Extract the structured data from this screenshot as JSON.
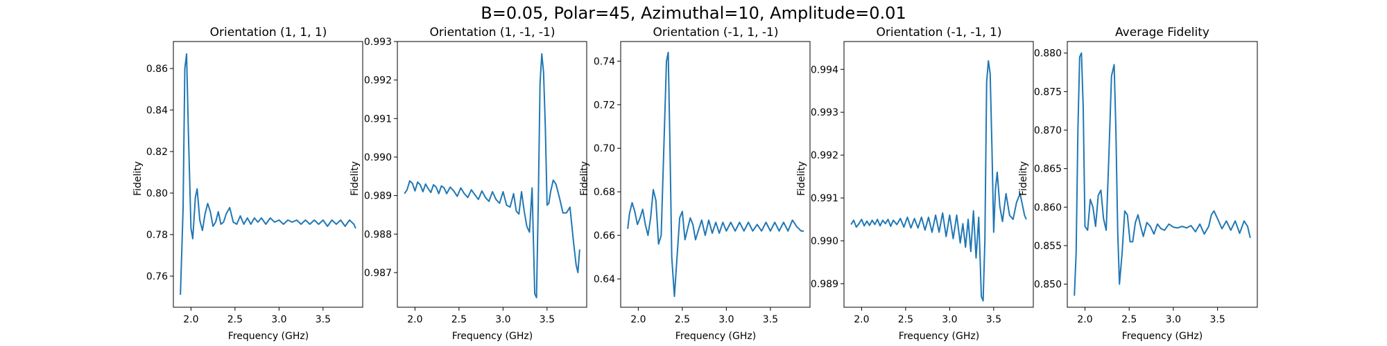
{
  "figure": {
    "suptitle": "B=0.05, Polar=45, Azimuthal=10, Amplitude=0.01",
    "line_color": "#1f77b4"
  },
  "chart_data": [
    {
      "type": "line",
      "title": "Orientation (1, 1, 1)",
      "xlabel": "Frequency (GHz)",
      "ylabel": "Fidelity",
      "xlim": [
        1.8,
        3.95
      ],
      "ylim": [
        0.745,
        0.873
      ],
      "xticks": [
        "2.0",
        "2.5",
        "3.0",
        "3.5"
      ],
      "yticks": [
        "0.76",
        "0.78",
        "0.80",
        "0.82",
        "0.84",
        "0.86"
      ],
      "series": [
        {
          "x": [
            1.88,
            1.91,
            1.93,
            1.95,
            1.97,
            2.0,
            2.02,
            2.05,
            2.07,
            2.1,
            2.13,
            2.16,
            2.19,
            2.22,
            2.25,
            2.28,
            2.31,
            2.34,
            2.37,
            2.4,
            2.44,
            2.48,
            2.52,
            2.56,
            2.6,
            2.64,
            2.68,
            2.72,
            2.76,
            2.8,
            2.85,
            2.9,
            2.95,
            3.0,
            3.05,
            3.1,
            3.15,
            3.2,
            3.25,
            3.3,
            3.35,
            3.4,
            3.45,
            3.5,
            3.55,
            3.6,
            3.65,
            3.7,
            3.75,
            3.8,
            3.85,
            3.87
          ],
          "y": [
            0.751,
            0.792,
            0.86,
            0.867,
            0.83,
            0.783,
            0.778,
            0.798,
            0.802,
            0.787,
            0.782,
            0.79,
            0.795,
            0.791,
            0.784,
            0.786,
            0.791,
            0.785,
            0.786,
            0.79,
            0.793,
            0.786,
            0.785,
            0.789,
            0.785,
            0.788,
            0.785,
            0.788,
            0.786,
            0.788,
            0.785,
            0.788,
            0.786,
            0.787,
            0.785,
            0.787,
            0.786,
            0.787,
            0.785,
            0.787,
            0.785,
            0.787,
            0.785,
            0.787,
            0.784,
            0.787,
            0.785,
            0.787,
            0.784,
            0.787,
            0.785,
            0.783
          ]
        }
      ]
    },
    {
      "type": "line",
      "title": "Orientation (1, -1, -1)",
      "xlabel": "Frequency (GHz)",
      "ylabel": "Fidelity",
      "xlim": [
        1.8,
        3.95
      ],
      "ylim": [
        0.9861,
        0.993
      ],
      "xticks": [
        "2.0",
        "2.5",
        "3.0",
        "3.5"
      ],
      "yticks": [
        "0.987",
        "0.988",
        "0.989",
        "0.990",
        "0.991",
        "0.992",
        "0.993"
      ],
      "series": [
        {
          "x": [
            1.88,
            1.91,
            1.94,
            1.97,
            2.0,
            2.03,
            2.06,
            2.09,
            2.12,
            2.15,
            2.18,
            2.21,
            2.24,
            2.27,
            2.3,
            2.33,
            2.36,
            2.4,
            2.44,
            2.48,
            2.52,
            2.56,
            2.6,
            2.64,
            2.68,
            2.72,
            2.76,
            2.8,
            2.84,
            2.88,
            2.92,
            2.96,
            3.0,
            3.04,
            3.08,
            3.12,
            3.15,
            3.18,
            3.21,
            3.24,
            3.27,
            3.3,
            3.33,
            3.36,
            3.38,
            3.4,
            3.42,
            3.44,
            3.46,
            3.48,
            3.5,
            3.52,
            3.54,
            3.57,
            3.6,
            3.64,
            3.68,
            3.72,
            3.76,
            3.8,
            3.83,
            3.85,
            3.87
          ],
          "y": [
            0.98905,
            0.98915,
            0.98938,
            0.98932,
            0.98912,
            0.98935,
            0.98928,
            0.9891,
            0.9893,
            0.98918,
            0.98908,
            0.98928,
            0.98922,
            0.98905,
            0.98925,
            0.9892,
            0.98905,
            0.98922,
            0.98912,
            0.98898,
            0.9892,
            0.98905,
            0.98895,
            0.98915,
            0.98902,
            0.9889,
            0.98912,
            0.98895,
            0.98885,
            0.9891,
            0.9889,
            0.9888,
            0.9891,
            0.98875,
            0.9887,
            0.98905,
            0.9886,
            0.98852,
            0.9891,
            0.9886,
            0.9882,
            0.98805,
            0.9892,
            0.98645,
            0.98635,
            0.9888,
            0.9919,
            0.99268,
            0.9922,
            0.9908,
            0.98875,
            0.9888,
            0.9891,
            0.9894,
            0.9893,
            0.98895,
            0.98855,
            0.98855,
            0.9887,
            0.9878,
            0.9872,
            0.987,
            0.9876
          ]
        }
      ]
    },
    {
      "type": "line",
      "title": "Orientation (-1, 1, -1)",
      "xlabel": "Frequency (GHz)",
      "ylabel": "Fidelity",
      "xlim": [
        1.8,
        3.95
      ],
      "ylim": [
        0.627,
        0.749
      ],
      "xticks": [
        "2.0",
        "2.5",
        "3.0",
        "3.5"
      ],
      "yticks": [
        "0.64",
        "0.66",
        "0.68",
        "0.70",
        "0.72",
        "0.74"
      ],
      "series": [
        {
          "x": [
            1.88,
            1.9,
            1.93,
            1.96,
            1.99,
            2.02,
            2.05,
            2.08,
            2.11,
            2.14,
            2.17,
            2.2,
            2.23,
            2.26,
            2.29,
            2.32,
            2.34,
            2.36,
            2.38,
            2.41,
            2.44,
            2.47,
            2.5,
            2.53,
            2.56,
            2.59,
            2.62,
            2.65,
            2.68,
            2.72,
            2.76,
            2.8,
            2.84,
            2.88,
            2.92,
            2.96,
            3.0,
            3.05,
            3.1,
            3.15,
            3.2,
            3.25,
            3.3,
            3.35,
            3.4,
            3.45,
            3.5,
            3.55,
            3.6,
            3.65,
            3.7,
            3.75,
            3.8,
            3.85,
            3.88
          ],
          "y": [
            0.663,
            0.67,
            0.675,
            0.671,
            0.665,
            0.668,
            0.672,
            0.665,
            0.66,
            0.668,
            0.681,
            0.676,
            0.656,
            0.66,
            0.7,
            0.74,
            0.744,
            0.7,
            0.65,
            0.632,
            0.65,
            0.668,
            0.671,
            0.658,
            0.663,
            0.668,
            0.665,
            0.658,
            0.662,
            0.667,
            0.66,
            0.667,
            0.661,
            0.666,
            0.661,
            0.666,
            0.662,
            0.666,
            0.662,
            0.666,
            0.662,
            0.666,
            0.662,
            0.665,
            0.662,
            0.666,
            0.662,
            0.666,
            0.662,
            0.666,
            0.662,
            0.667,
            0.664,
            0.662,
            0.662
          ]
        }
      ]
    },
    {
      "type": "line",
      "title": "Orientation (-1, -1, 1)",
      "xlabel": "Frequency (GHz)",
      "ylabel": "Fidelity",
      "xlim": [
        1.8,
        3.95
      ],
      "ylim": [
        0.98845,
        0.99465
      ],
      "xticks": [
        "2.0",
        "2.5",
        "3.0",
        "3.5"
      ],
      "yticks": [
        "0.989",
        "0.990",
        "0.991",
        "0.992",
        "0.993",
        "0.994"
      ],
      "series": [
        {
          "x": [
            1.88,
            1.91,
            1.94,
            1.97,
            2.0,
            2.03,
            2.06,
            2.09,
            2.12,
            2.15,
            2.18,
            2.21,
            2.24,
            2.27,
            2.3,
            2.33,
            2.36,
            2.4,
            2.44,
            2.48,
            2.52,
            2.56,
            2.6,
            2.64,
            2.68,
            2.72,
            2.76,
            2.8,
            2.84,
            2.88,
            2.92,
            2.96,
            3.0,
            3.04,
            3.08,
            3.12,
            3.15,
            3.18,
            3.21,
            3.24,
            3.27,
            3.3,
            3.33,
            3.36,
            3.38,
            3.4,
            3.42,
            3.44,
            3.46,
            3.48,
            3.5,
            3.52,
            3.54,
            3.57,
            3.6,
            3.64,
            3.68,
            3.72,
            3.76,
            3.8,
            3.83,
            3.85,
            3.87
          ],
          "y": [
            0.99038,
            0.99048,
            0.99032,
            0.9904,
            0.9905,
            0.99035,
            0.99046,
            0.99036,
            0.99048,
            0.99038,
            0.9905,
            0.99035,
            0.99048,
            0.9904,
            0.9905,
            0.99034,
            0.99048,
            0.99038,
            0.99052,
            0.99032,
            0.99055,
            0.9903,
            0.99052,
            0.9903,
            0.99055,
            0.99025,
            0.99055,
            0.9902,
            0.9906,
            0.9902,
            0.99065,
            0.9901,
            0.9906,
            0.99005,
            0.9906,
            0.98995,
            0.9904,
            0.98985,
            0.9905,
            0.98975,
            0.9907,
            0.9896,
            0.99055,
            0.9887,
            0.9886,
            0.99,
            0.9937,
            0.9942,
            0.9939,
            0.9922,
            0.9902,
            0.9912,
            0.9916,
            0.9908,
            0.99045,
            0.9911,
            0.9906,
            0.9905,
            0.9909,
            0.9911,
            0.9908,
            0.9906,
            0.9905
          ]
        }
      ]
    },
    {
      "type": "line",
      "title": "Average Fidelity",
      "xlabel": "Frequency (GHz)",
      "ylabel": "Fidelity",
      "xlim": [
        1.8,
        3.95
      ],
      "ylim": [
        0.847,
        0.8815
      ],
      "xticks": [
        "2.0",
        "2.5",
        "3.0",
        "3.5"
      ],
      "yticks": [
        "0.850",
        "0.855",
        "0.860",
        "0.865",
        "0.870",
        "0.875",
        "0.880"
      ],
      "series": [
        {
          "x": [
            1.88,
            1.9,
            1.92,
            1.94,
            1.96,
            1.98,
            2.0,
            2.03,
            2.06,
            2.09,
            2.12,
            2.15,
            2.18,
            2.21,
            2.24,
            2.27,
            2.3,
            2.33,
            2.35,
            2.37,
            2.39,
            2.42,
            2.45,
            2.48,
            2.51,
            2.54,
            2.57,
            2.6,
            2.63,
            2.66,
            2.7,
            2.74,
            2.78,
            2.82,
            2.86,
            2.9,
            2.95,
            3.0,
            3.05,
            3.1,
            3.15,
            3.2,
            3.25,
            3.3,
            3.35,
            3.4,
            3.43,
            3.46,
            3.5,
            3.55,
            3.6,
            3.65,
            3.7,
            3.75,
            3.8,
            3.84,
            3.87
          ],
          "y": [
            0.8485,
            0.854,
            0.87,
            0.8795,
            0.88,
            0.873,
            0.8575,
            0.857,
            0.861,
            0.86,
            0.8575,
            0.8615,
            0.8622,
            0.8585,
            0.857,
            0.8665,
            0.877,
            0.8785,
            0.87,
            0.857,
            0.85,
            0.854,
            0.8595,
            0.859,
            0.8555,
            0.8555,
            0.858,
            0.859,
            0.8575,
            0.8562,
            0.858,
            0.8575,
            0.8565,
            0.8578,
            0.8572,
            0.857,
            0.8578,
            0.8574,
            0.8573,
            0.8575,
            0.8573,
            0.8576,
            0.8568,
            0.8578,
            0.8565,
            0.8575,
            0.859,
            0.8595,
            0.8585,
            0.8572,
            0.8582,
            0.857,
            0.8582,
            0.8566,
            0.8582,
            0.8575,
            0.856
          ]
        }
      ]
    }
  ]
}
